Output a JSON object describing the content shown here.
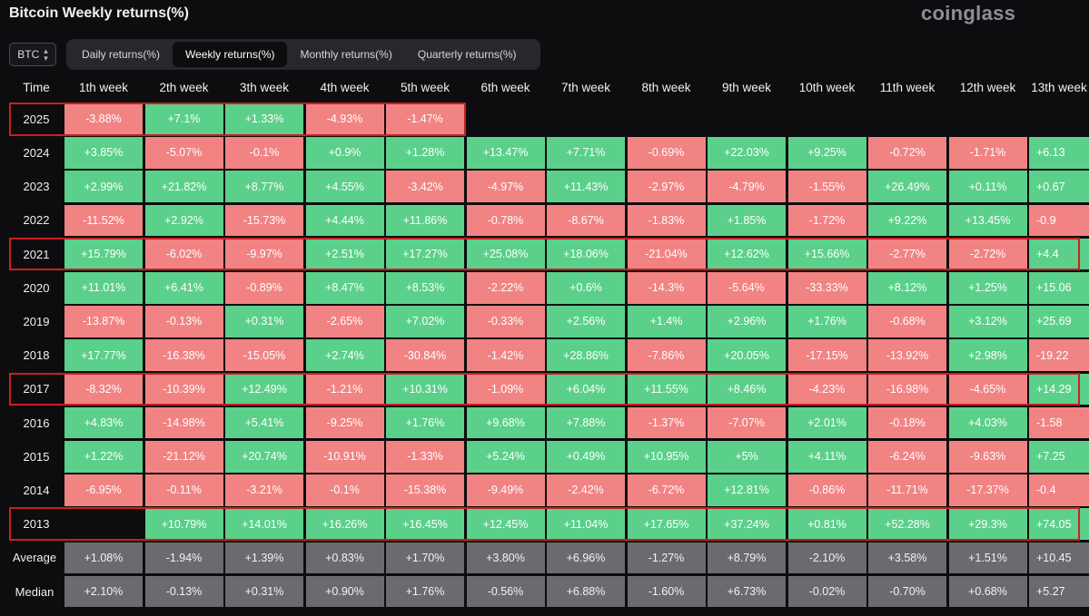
{
  "title": "Bitcoin Weekly returns(%)",
  "brand": "coinglass",
  "coin_select": {
    "value": "BTC",
    "icon": "up-down-chevron-icon"
  },
  "tabs": [
    {
      "label": "Daily returns(%)",
      "active": false
    },
    {
      "label": "Weekly returns(%)",
      "active": true
    },
    {
      "label": "Monthly returns(%)",
      "active": false
    },
    {
      "label": "Quarterly returns(%)",
      "active": false
    }
  ],
  "colors": {
    "positive": "#5bd08a",
    "negative": "#f28383",
    "stat": "#6a6b70",
    "highlight": "#c8211f",
    "background": "#0d0d0f"
  },
  "chart_data": {
    "type": "heatmap",
    "corner_label": "Time",
    "columns": [
      "1th week",
      "2th week",
      "3th week",
      "4th week",
      "5th week",
      "6th week",
      "7th week",
      "8th week",
      "9th week",
      "10th week",
      "11th week",
      "12th week",
      "13th week"
    ],
    "rows": [
      {
        "year": "2025",
        "highlighted": true,
        "values": [
          "-3.88%",
          "+7.1%",
          "+1.33%",
          "-4.93%",
          "-1.47%",
          "",
          "",
          "",
          "",
          "",
          "",
          "",
          ""
        ]
      },
      {
        "year": "2024",
        "highlighted": false,
        "values": [
          "+3.85%",
          "-5.07%",
          "-0.1%",
          "+0.9%",
          "+1.28%",
          "+13.47%",
          "+7.71%",
          "-0.69%",
          "+22.03%",
          "+9.25%",
          "-0.72%",
          "-1.71%",
          "+6.13"
        ]
      },
      {
        "year": "2023",
        "highlighted": false,
        "values": [
          "+2.99%",
          "+21.82%",
          "+8.77%",
          "+4.55%",
          "-3.42%",
          "-4.97%",
          "+11.43%",
          "-2.97%",
          "-4.79%",
          "-1.55%",
          "+26.49%",
          "+0.11%",
          "+0.67"
        ]
      },
      {
        "year": "2022",
        "highlighted": false,
        "values": [
          "-11.52%",
          "+2.92%",
          "-15.73%",
          "+4.44%",
          "+11.86%",
          "-0.78%",
          "-8.67%",
          "-1.83%",
          "+1.85%",
          "-1.72%",
          "+9.22%",
          "+13.45%",
          "-0.9"
        ]
      },
      {
        "year": "2021",
        "highlighted": true,
        "values": [
          "+15.79%",
          "-6.02%",
          "-9.97%",
          "+2.51%",
          "+17.27%",
          "+25.08%",
          "+18.06%",
          "-21.04%",
          "+12.62%",
          "+15.66%",
          "-2.77%",
          "-2.72%",
          "+4.4"
        ]
      },
      {
        "year": "2020",
        "highlighted": false,
        "values": [
          "+11.01%",
          "+6.41%",
          "-0.89%",
          "+8.47%",
          "+8.53%",
          "-2.22%",
          "+0.6%",
          "-14.3%",
          "-5.64%",
          "-33.33%",
          "+8.12%",
          "+1.25%",
          "+15.06"
        ]
      },
      {
        "year": "2019",
        "highlighted": false,
        "values": [
          "-13.87%",
          "-0.13%",
          "+0.31%",
          "-2.65%",
          "+7.02%",
          "-0.33%",
          "+2.56%",
          "+1.4%",
          "+2.96%",
          "+1.76%",
          "-0.68%",
          "+3.12%",
          "+25.69"
        ]
      },
      {
        "year": "2018",
        "highlighted": false,
        "values": [
          "+17.77%",
          "-16.38%",
          "-15.05%",
          "+2.74%",
          "-30.84%",
          "-1.42%",
          "+28.86%",
          "-7.86%",
          "+20.05%",
          "-17.15%",
          "-13.92%",
          "+2.98%",
          "-19.22"
        ]
      },
      {
        "year": "2017",
        "highlighted": true,
        "values": [
          "-8.32%",
          "-10.39%",
          "+12.49%",
          "-1.21%",
          "+10.31%",
          "-1.09%",
          "+6.04%",
          "+11.55%",
          "+8.46%",
          "-4.23%",
          "-16.98%",
          "-4.65%",
          "+14.29"
        ]
      },
      {
        "year": "2016",
        "highlighted": false,
        "values": [
          "+4.83%",
          "-14.98%",
          "+5.41%",
          "-9.25%",
          "+1.76%",
          "+9.68%",
          "+7.88%",
          "-1.37%",
          "-7.07%",
          "+2.01%",
          "-0.18%",
          "+4.03%",
          "-1.58"
        ]
      },
      {
        "year": "2015",
        "highlighted": false,
        "values": [
          "+1.22%",
          "-21.12%",
          "+20.74%",
          "-10.91%",
          "-1.33%",
          "+5.24%",
          "+0.49%",
          "+10.95%",
          "+5%",
          "+4.11%",
          "-6.24%",
          "-9.63%",
          "+7.25"
        ]
      },
      {
        "year": "2014",
        "highlighted": false,
        "values": [
          "-6.95%",
          "-0.11%",
          "-3.21%",
          "-0.1%",
          "-15.38%",
          "-9.49%",
          "-2.42%",
          "-6.72%",
          "+12.81%",
          "-0.86%",
          "-11.71%",
          "-17.37%",
          "-0.4"
        ]
      },
      {
        "year": "2013",
        "highlighted": true,
        "values": [
          "",
          "+10.79%",
          "+14.01%",
          "+16.26%",
          "+16.45%",
          "+12.45%",
          "+11.04%",
          "+17.65%",
          "+37.24%",
          "+0.81%",
          "+52.28%",
          "+29.3%",
          "+74.05"
        ]
      }
    ],
    "summary_rows": [
      {
        "label": "Average",
        "values": [
          "+1.08%",
          "-1.94%",
          "+1.39%",
          "+0.83%",
          "+1.70%",
          "+3.80%",
          "+6.96%",
          "-1.27%",
          "+8.79%",
          "-2.10%",
          "+3.58%",
          "+1.51%",
          "+10.45"
        ]
      },
      {
        "label": "Median",
        "values": [
          "+2.10%",
          "-0.13%",
          "+0.31%",
          "+0.90%",
          "+1.76%",
          "-0.56%",
          "+6.88%",
          "-1.60%",
          "+6.73%",
          "-0.02%",
          "-0.70%",
          "+0.68%",
          "+5.27"
        ]
      }
    ]
  }
}
